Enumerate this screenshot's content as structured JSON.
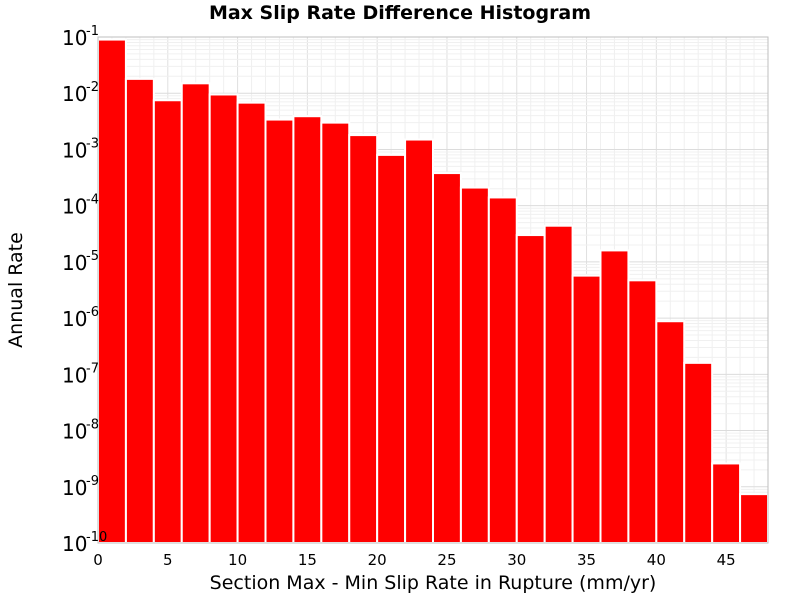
{
  "chart_data": {
    "type": "bar",
    "title": "Max Slip Rate Difference Histogram",
    "xlabel": "Section Max - Min Slip Rate in Rupture (mm/yr)",
    "ylabel": "Annual Rate",
    "yscale": "log",
    "xlim": [
      0,
      48
    ],
    "ylim": [
      1e-10,
      0.1
    ],
    "bin_width": 2,
    "x": [
      1,
      3,
      5,
      7,
      9,
      11,
      13,
      15,
      17,
      19,
      21,
      23,
      25,
      27,
      29,
      31,
      33,
      35,
      37,
      39,
      41,
      43,
      45,
      47
    ],
    "values": [
      0.09,
      0.018,
      0.0075,
      0.015,
      0.0095,
      0.0068,
      0.0034,
      0.0039,
      0.003,
      0.0018,
      0.0008,
      0.0015,
      0.00038,
      0.00021,
      0.00014,
      3e-05,
      4.4e-05,
      5.7e-06,
      1.6e-05,
      4.7e-06,
      8.8e-07,
      1.6e-07,
      2.6e-09,
      7.4e-10
    ],
    "x_ticks": [
      "0",
      "5",
      "10",
      "15",
      "20",
      "25",
      "30",
      "35",
      "40",
      "45"
    ],
    "y_ticks": [
      {
        "base": "10",
        "exp": "-1"
      },
      {
        "base": "10",
        "exp": "-2"
      },
      {
        "base": "10",
        "exp": "-3"
      },
      {
        "base": "10",
        "exp": "-4"
      },
      {
        "base": "10",
        "exp": "-5"
      },
      {
        "base": "10",
        "exp": "-6"
      },
      {
        "base": "10",
        "exp": "-7"
      },
      {
        "base": "10",
        "exp": "-8"
      },
      {
        "base": "10",
        "exp": "-9"
      },
      {
        "base": "10",
        "exp": "-10"
      }
    ],
    "grid": true,
    "colors": {
      "bar": "#ff0000",
      "bar_edge": "#ffffff",
      "grid": "#e6e6e6",
      "frame": "#bfbfbf"
    }
  }
}
